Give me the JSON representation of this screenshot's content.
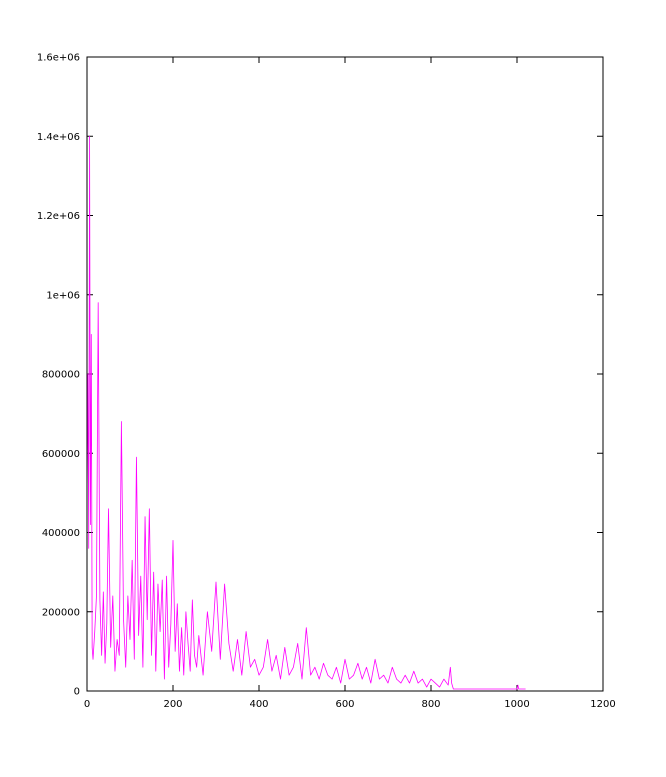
{
  "chart_data": {
    "type": "line",
    "title": "",
    "xlabel": "",
    "ylabel": "",
    "xlim": [
      0,
      1200
    ],
    "ylim": [
      0,
      1600000
    ],
    "xticks": [
      0,
      200,
      400,
      600,
      800,
      1000,
      1200
    ],
    "xtick_labels": [
      "0",
      "200",
      "400",
      "600",
      "800",
      "1000",
      "1200"
    ],
    "yticks": [
      0,
      200000,
      400000,
      600000,
      800000,
      1000000,
      1200000,
      1400000,
      1600000
    ],
    "ytick_labels": [
      "0",
      "200000",
      "400000",
      "600000",
      "800000",
      "1e+06",
      "1.2e+06",
      "1.4e+06",
      "1.6e+06"
    ],
    "grid": false,
    "legend": "none",
    "series": [
      {
        "color": "#ff00ff",
        "x": [
          0,
          2,
          4,
          6,
          8,
          10,
          12,
          14,
          18,
          22,
          26,
          30,
          34,
          38,
          42,
          46,
          50,
          55,
          60,
          65,
          70,
          75,
          80,
          85,
          90,
          95,
          100,
          105,
          110,
          115,
          120,
          125,
          130,
          135,
          140,
          145,
          150,
          155,
          160,
          165,
          170,
          175,
          180,
          185,
          190,
          195,
          200,
          205,
          210,
          215,
          220,
          225,
          230,
          235,
          240,
          245,
          250,
          255,
          260,
          270,
          280,
          290,
          300,
          310,
          320,
          330,
          340,
          350,
          360,
          370,
          380,
          390,
          400,
          410,
          420,
          430,
          440,
          450,
          460,
          470,
          480,
          490,
          500,
          510,
          520,
          530,
          540,
          550,
          560,
          570,
          580,
          590,
          600,
          610,
          620,
          630,
          640,
          650,
          660,
          670,
          680,
          690,
          700,
          710,
          720,
          730,
          740,
          750,
          760,
          770,
          780,
          790,
          800,
          810,
          820,
          830,
          840,
          845,
          848,
          852,
          860,
          900,
          950,
          1000,
          1002,
          1004,
          1020
        ],
        "y": [
          480000,
          800000,
          360000,
          1400000,
          420000,
          900000,
          110000,
          80000,
          150000,
          240000,
          980000,
          230000,
          90000,
          250000,
          70000,
          170000,
          460000,
          110000,
          240000,
          50000,
          130000,
          90000,
          680000,
          180000,
          60000,
          240000,
          130000,
          330000,
          80000,
          590000,
          140000,
          290000,
          60000,
          440000,
          180000,
          460000,
          90000,
          300000,
          50000,
          270000,
          150000,
          280000,
          30000,
          290000,
          60000,
          170000,
          380000,
          100000,
          220000,
          50000,
          160000,
          40000,
          200000,
          120000,
          50000,
          230000,
          90000,
          60000,
          140000,
          40000,
          200000,
          100000,
          275000,
          80000,
          270000,
          120000,
          50000,
          130000,
          40000,
          150000,
          60000,
          80000,
          40000,
          60000,
          130000,
          50000,
          90000,
          30000,
          110000,
          40000,
          60000,
          120000,
          30000,
          160000,
          40000,
          60000,
          30000,
          70000,
          40000,
          30000,
          60000,
          20000,
          80000,
          30000,
          40000,
          70000,
          30000,
          60000,
          20000,
          80000,
          30000,
          40000,
          20000,
          60000,
          30000,
          20000,
          40000,
          20000,
          50000,
          20000,
          30000,
          10000,
          30000,
          20000,
          10000,
          30000,
          15000,
          60000,
          20000,
          5000,
          5000,
          5000,
          5000,
          5000,
          15000,
          5000,
          5000
        ]
      }
    ]
  }
}
